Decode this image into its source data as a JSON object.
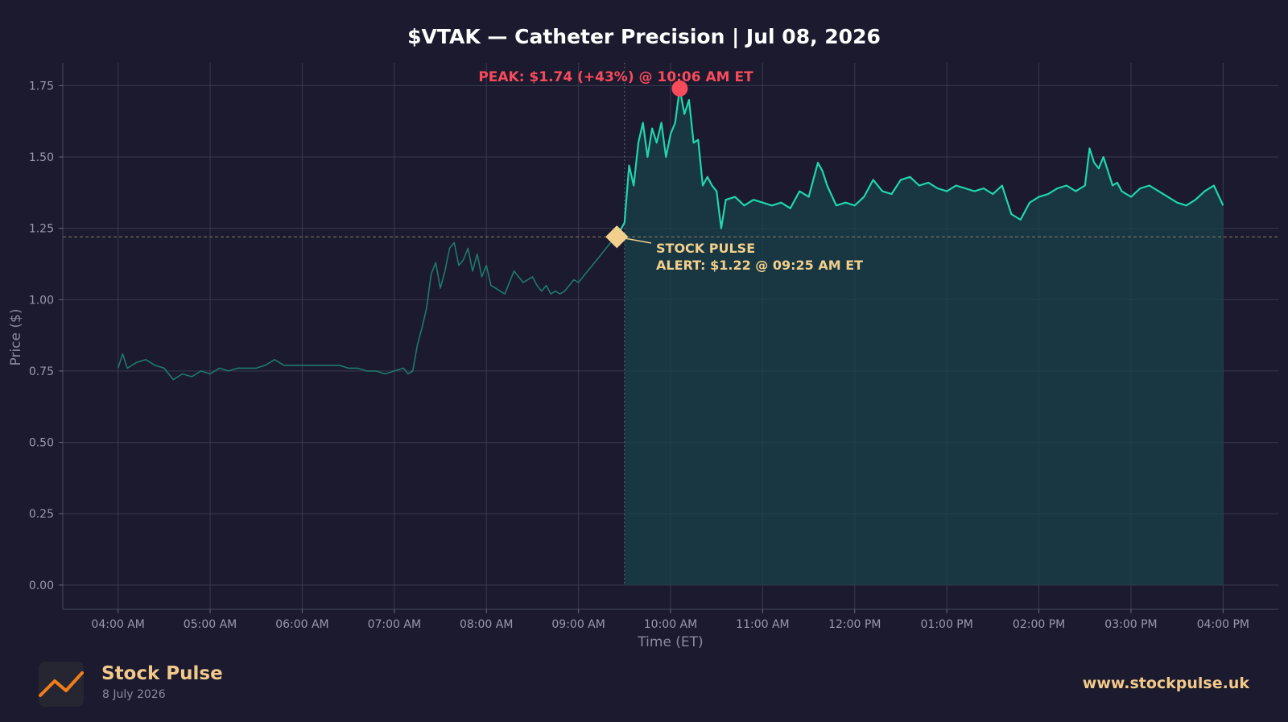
{
  "chart_data": {
    "type": "line",
    "title": "$VTAK — Catheter Precision  |  Jul 08, 2026",
    "xlabel": "Time (ET)",
    "ylabel": "Price ($)",
    "x_ticks": [
      "04:00 AM",
      "05:00 AM",
      "06:00 AM",
      "07:00 AM",
      "08:00 AM",
      "09:00 AM",
      "10:00 AM",
      "11:00 AM",
      "12:00 PM",
      "01:00 PM",
      "02:00 PM",
      "03:00 PM",
      "04:00 PM"
    ],
    "y_ticks": [
      "0.00",
      "0.25",
      "0.50",
      "0.75",
      "1.00",
      "1.25",
      "1.50",
      "1.75"
    ],
    "xlim_hours": [
      3.4,
      16.6
    ],
    "ylim": [
      -0.085,
      1.83
    ],
    "grid": true,
    "market_open": "09:30 AM",
    "alert_level": 1.22,
    "series": [
      {
        "time_hours": [
          4.0,
          4.05,
          4.1,
          4.2,
          4.3,
          4.4,
          4.5,
          4.6,
          4.7,
          4.8,
          4.9,
          5.0,
          5.1,
          5.2,
          5.3,
          5.4,
          5.5,
          5.6,
          5.7,
          5.8,
          5.9,
          6.0,
          6.1,
          6.2,
          6.3,
          6.4,
          6.5,
          6.6,
          6.7,
          6.8,
          6.9,
          7.0,
          7.1,
          7.15,
          7.2,
          7.25,
          7.3,
          7.35,
          7.4,
          7.45,
          7.5,
          7.55,
          7.6,
          7.65,
          7.7,
          7.75,
          7.8,
          7.85,
          7.9,
          7.95,
          8.0,
          8.05,
          8.1,
          8.15,
          8.2,
          8.25,
          8.3,
          8.35,
          8.4,
          8.45,
          8.5,
          8.55,
          8.6,
          8.65,
          8.7,
          8.75,
          8.8,
          8.85,
          8.9,
          8.95,
          9.0,
          9.05,
          9.1,
          9.15,
          9.2,
          9.25,
          9.3,
          9.35,
          9.4167
        ],
        "values": [
          0.76,
          0.81,
          0.76,
          0.78,
          0.79,
          0.77,
          0.76,
          0.72,
          0.74,
          0.73,
          0.75,
          0.74,
          0.76,
          0.75,
          0.76,
          0.76,
          0.76,
          0.77,
          0.79,
          0.77,
          0.77,
          0.77,
          0.77,
          0.77,
          0.77,
          0.77,
          0.76,
          0.76,
          0.75,
          0.75,
          0.74,
          0.75,
          0.76,
          0.74,
          0.75,
          0.84,
          0.9,
          0.97,
          1.09,
          1.13,
          1.04,
          1.1,
          1.18,
          1.2,
          1.12,
          1.14,
          1.18,
          1.1,
          1.16,
          1.08,
          1.12,
          1.05,
          1.04,
          1.03,
          1.02,
          1.06,
          1.1,
          1.08,
          1.06,
          1.07,
          1.08,
          1.05,
          1.03,
          1.05,
          1.02,
          1.03,
          1.02,
          1.03,
          1.05,
          1.07,
          1.06,
          1.08,
          1.1,
          1.12,
          1.14,
          1.16,
          1.18,
          1.2,
          1.22
        ]
      },
      {
        "time_hours": [
          9.4167,
          9.5,
          9.55,
          9.6,
          9.65,
          9.7,
          9.75,
          9.8,
          9.85,
          9.9,
          9.95,
          10.0,
          10.05,
          10.1,
          10.15,
          10.2,
          10.25,
          10.3,
          10.35,
          10.4,
          10.45,
          10.5,
          10.55,
          10.6,
          10.7,
          10.8,
          10.9,
          11.0,
          11.1,
          11.2,
          11.3,
          11.4,
          11.5,
          11.6,
          11.65,
          11.7,
          11.8,
          11.9,
          12.0,
          12.1,
          12.2,
          12.3,
          12.4,
          12.5,
          12.6,
          12.7,
          12.8,
          12.9,
          13.0,
          13.1,
          13.2,
          13.3,
          13.4,
          13.5,
          13.6,
          13.7,
          13.75,
          13.8,
          13.9,
          14.0,
          14.1,
          14.2,
          14.3,
          14.4,
          14.5,
          14.55,
          14.6,
          14.65,
          14.7,
          14.75,
          14.8,
          14.85,
          14.9,
          15.0,
          15.1,
          15.2,
          15.3,
          15.4,
          15.5,
          15.6,
          15.7,
          15.8,
          15.9,
          16.0
        ],
        "values": [
          1.22,
          1.27,
          1.47,
          1.4,
          1.55,
          1.62,
          1.5,
          1.6,
          1.55,
          1.62,
          1.5,
          1.58,
          1.62,
          1.74,
          1.65,
          1.7,
          1.55,
          1.56,
          1.4,
          1.43,
          1.4,
          1.38,
          1.25,
          1.35,
          1.36,
          1.33,
          1.35,
          1.34,
          1.33,
          1.34,
          1.32,
          1.38,
          1.36,
          1.48,
          1.45,
          1.4,
          1.33,
          1.34,
          1.33,
          1.36,
          1.42,
          1.38,
          1.37,
          1.42,
          1.43,
          1.4,
          1.41,
          1.39,
          1.38,
          1.4,
          1.39,
          1.38,
          1.39,
          1.37,
          1.4,
          1.3,
          1.29,
          1.28,
          1.34,
          1.36,
          1.37,
          1.39,
          1.4,
          1.38,
          1.4,
          1.53,
          1.48,
          1.46,
          1.5,
          1.45,
          1.4,
          1.41,
          1.38,
          1.36,
          1.39,
          1.4,
          1.38,
          1.36,
          1.34,
          1.33,
          1.35,
          1.38,
          1.4,
          1.33
        ]
      }
    ],
    "peak": {
      "time_hours": 10.1,
      "value": 1.74,
      "label": "PEAK: $1.74 (+43%) @ 10:06 AM ET",
      "color": "#f74b5c"
    },
    "alert": {
      "time_hours": 9.4167,
      "value": 1.22,
      "line1": "STOCK PULSE",
      "line2": "ALERT: $1.22 @ 09:25 AM ET",
      "color": "#f2cf8c"
    },
    "colors": {
      "premarket": "#1f7a6c",
      "regular": "#1fd6ad",
      "fill": "#18424a",
      "background": "#1b1a2e",
      "grid": "#3a3a50"
    }
  },
  "footer": {
    "brand": "Stock Pulse",
    "date": "8 July 2026",
    "website": "www.stockpulse.uk",
    "logo_icon": "line-chart-icon"
  }
}
